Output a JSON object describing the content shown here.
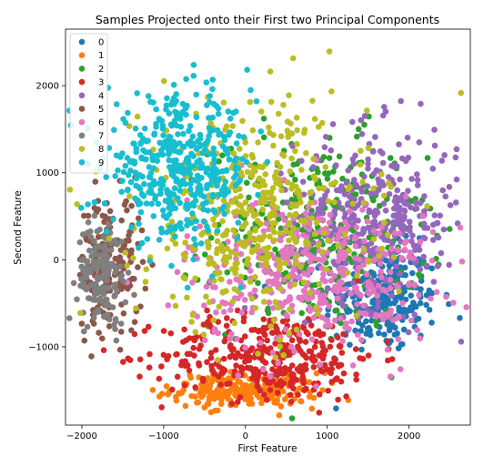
{
  "chart_data": {
    "type": "scatter",
    "title": "Samples Projected onto their First two Principal Components",
    "xlabel": "First Feature",
    "ylabel": "Second Feature",
    "xlim": [
      -2200,
      2750
    ],
    "ylim": [
      -1900,
      2650
    ],
    "x_ticks": [
      -2000,
      -1000,
      0,
      1000,
      2000
    ],
    "x_tick_labels": [
      "−2000",
      "−1000",
      "0",
      "1000",
      "2000"
    ],
    "y_ticks": [
      -1000,
      0,
      1000,
      2000
    ],
    "y_tick_labels": [
      "−1000",
      "0",
      "1000",
      "2000"
    ],
    "grid": false,
    "legend_position": "top-left",
    "series": [
      {
        "name": "0",
        "color": "#1f77b4",
        "center": [
          1650,
          -450
        ],
        "spread": [
          350,
          300
        ],
        "count": 260
      },
      {
        "name": "1",
        "color": "#ff7f0e",
        "center": [
          0,
          -1500
        ],
        "spread": [
          450,
          100
        ],
        "count": 240
      },
      {
        "name": "2",
        "color": "#2ca02c",
        "center": [
          900,
          300
        ],
        "spread": [
          650,
          550
        ],
        "count": 320
      },
      {
        "name": "3",
        "color": "#d62728",
        "center": [
          300,
          -1100
        ],
        "spread": [
          650,
          250
        ],
        "count": 360
      },
      {
        "name": "4",
        "color": "#9467bd",
        "center": [
          1600,
          500
        ],
        "spread": [
          500,
          500
        ],
        "count": 360
      },
      {
        "name": "5",
        "color": "#8c564b",
        "center": [
          -1650,
          -50
        ],
        "spread": [
          200,
          400
        ],
        "count": 170
      },
      {
        "name": "6",
        "color": "#e377c2",
        "center": [
          800,
          -150
        ],
        "spread": [
          750,
          450
        ],
        "count": 420
      },
      {
        "name": "7",
        "color": "#7f7f7f",
        "center": [
          -1750,
          -150
        ],
        "spread": [
          150,
          300
        ],
        "count": 150
      },
      {
        "name": "8",
        "color": "#bcbd22",
        "center": [
          100,
          500
        ],
        "spread": [
          700,
          650
        ],
        "count": 430
      },
      {
        "name": "9",
        "color": "#17becf",
        "center": [
          -800,
          1050
        ],
        "spread": [
          450,
          400
        ],
        "count": 440
      }
    ]
  }
}
